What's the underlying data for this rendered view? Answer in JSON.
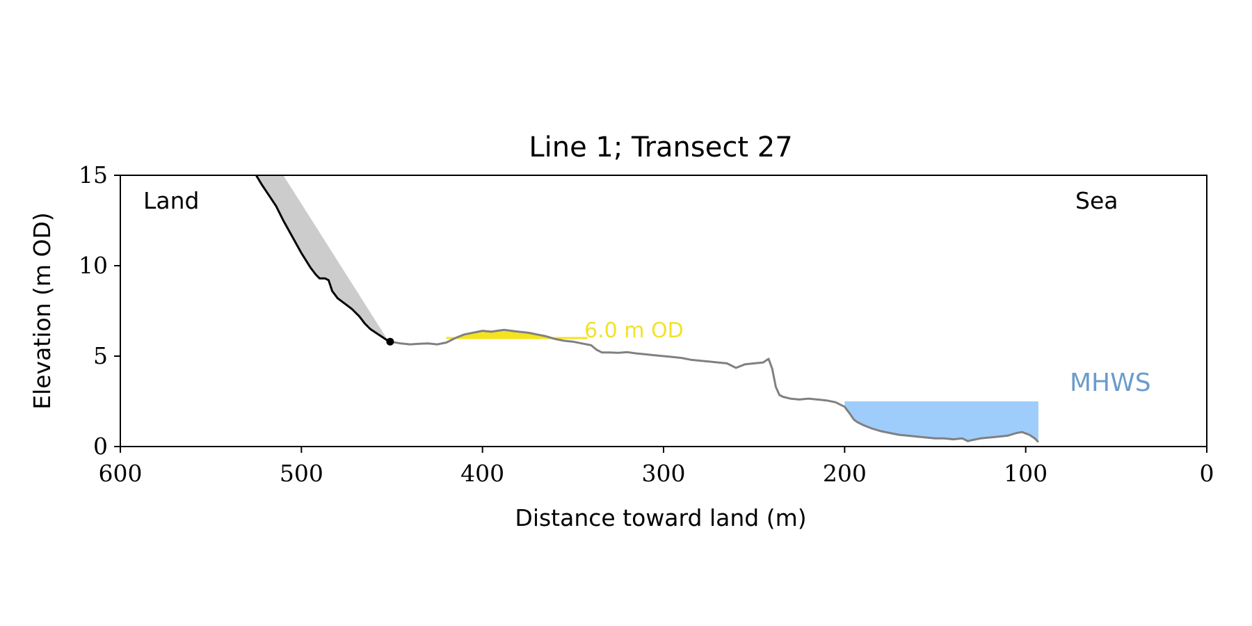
{
  "chart_data": {
    "type": "line",
    "title": "Line 1; Transect 27",
    "xlabel": "Distance toward land (m)",
    "ylabel": "Elevation (m OD)",
    "xlim": [
      600,
      0
    ],
    "ylim": [
      0,
      15
    ],
    "x_ticks": [
      600,
      500,
      400,
      300,
      200,
      100,
      0
    ],
    "y_ticks": [
      0,
      5,
      10,
      15
    ],
    "x_tick_labels": [
      "600",
      "500",
      "400",
      "300",
      "200",
      "100",
      "0"
    ],
    "y_tick_labels": [
      "0",
      "5",
      "10",
      "15"
    ],
    "grid": false,
    "annotations": {
      "land": "Land",
      "sea": "Sea",
      "threshold_label": "6.0 m OD",
      "mhws_label": "MHWS"
    },
    "threshold_level": 6.0,
    "mhws_level": 2.5,
    "colors": {
      "cliff": "#000000",
      "profile": "#808080",
      "cliff_wedge": "#cccccc",
      "threshold": "#f5e320",
      "threshold_text": "#f2e22a",
      "water": "#9fcdfb",
      "mhws_text": "#6b9ccb"
    },
    "series": [
      {
        "role": "cliff",
        "x": [
          525,
          522,
          518,
          514,
          510,
          505,
          500,
          495,
          492,
          490,
          487,
          485,
          483,
          480,
          476,
          472,
          468,
          465,
          462,
          459,
          456,
          453,
          451
        ],
        "y": [
          15,
          14.5,
          13.9,
          13.3,
          12.5,
          11.6,
          10.7,
          9.9,
          9.5,
          9.3,
          9.3,
          9.2,
          8.6,
          8.2,
          7.9,
          7.6,
          7.2,
          6.8,
          6.5,
          6.3,
          6.1,
          5.9,
          5.8
        ]
      },
      {
        "role": "profile",
        "x": [
          451,
          445,
          440,
          435,
          430,
          425,
          420,
          415,
          410,
          405,
          400,
          395,
          392,
          388,
          384,
          380,
          375,
          370,
          365,
          360,
          355,
          350,
          345,
          340,
          337,
          334,
          330,
          325,
          320,
          315,
          310,
          305,
          300,
          295,
          290,
          285,
          280,
          275,
          270,
          265,
          260,
          255,
          250,
          245,
          242,
          240,
          238,
          236,
          234,
          230,
          225,
          220,
          215,
          210,
          205,
          200,
          197,
          195,
          193,
          190,
          185,
          180,
          175,
          170,
          165,
          160,
          155,
          150,
          145,
          140,
          135,
          132,
          130,
          125,
          120,
          115,
          110,
          105,
          102,
          98,
          95,
          93
        ],
        "y": [
          5.8,
          5.7,
          5.65,
          5.68,
          5.7,
          5.65,
          5.75,
          6.0,
          6.2,
          6.3,
          6.4,
          6.35,
          6.4,
          6.45,
          6.4,
          6.35,
          6.3,
          6.2,
          6.1,
          5.95,
          5.85,
          5.8,
          5.7,
          5.6,
          5.35,
          5.2,
          5.2,
          5.18,
          5.22,
          5.15,
          5.1,
          5.05,
          5.0,
          4.95,
          4.9,
          4.8,
          4.75,
          4.7,
          4.65,
          4.6,
          4.35,
          4.55,
          4.6,
          4.65,
          4.85,
          4.3,
          3.3,
          2.85,
          2.75,
          2.65,
          2.6,
          2.65,
          2.6,
          2.55,
          2.45,
          2.2,
          1.8,
          1.5,
          1.35,
          1.2,
          1.0,
          0.85,
          0.75,
          0.65,
          0.6,
          0.55,
          0.5,
          0.45,
          0.45,
          0.4,
          0.45,
          0.3,
          0.35,
          0.45,
          0.5,
          0.55,
          0.6,
          0.75,
          0.8,
          0.65,
          0.45,
          0.25
        ]
      }
    ],
    "cliff_top_line": {
      "x": [
        510,
        453
      ],
      "y": [
        15,
        6.0
      ]
    },
    "cliff_toe_point": {
      "x": 451,
      "y": 5.8
    },
    "threshold_segment": {
      "x": [
        420,
        342
      ],
      "y": 6.0
    },
    "water_extent": {
      "x": [
        200,
        93
      ]
    }
  }
}
